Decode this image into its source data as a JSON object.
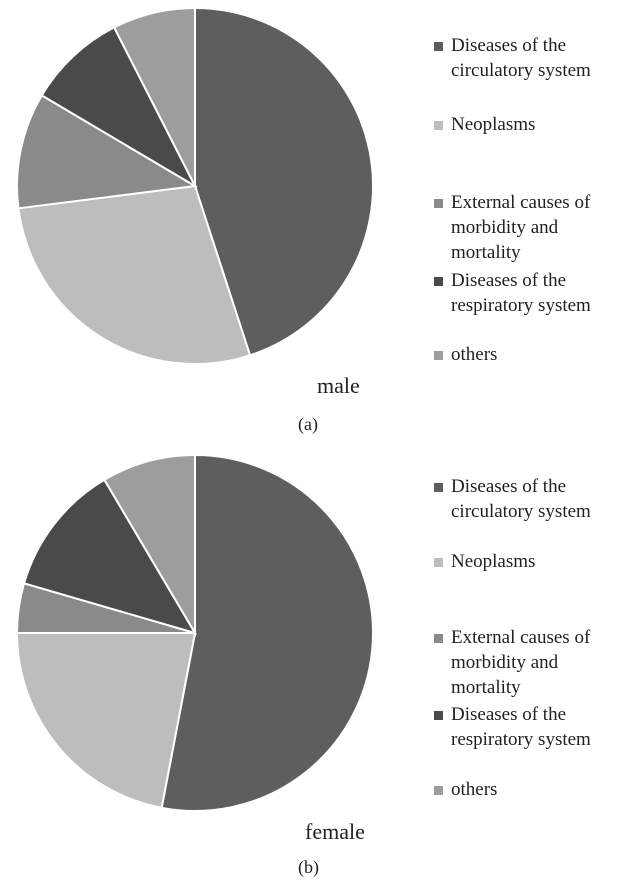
{
  "chart_data": [
    {
      "type": "pie",
      "panel_label": "(a)",
      "group_label": "male",
      "legend": [
        {
          "label": "Diseases of the circulatory system",
          "color": "#5e5e5e"
        },
        {
          "label": "Neoplasms",
          "color": "#bdbdbd"
        },
        {
          "label": "External causes of morbidity and mortality",
          "color": "#8a8a8a"
        },
        {
          "label": "Diseases of the respiratory system",
          "color": "#4a4a4a"
        },
        {
          "label": "others",
          "color": "#9d9d9d"
        }
      ],
      "slices": [
        {
          "label": "Diseases of the circulatory system",
          "value": 45,
          "color": "#5e5e5e"
        },
        {
          "label": "Neoplasms",
          "value": 28,
          "color": "#bdbdbd"
        },
        {
          "label": "External causes of morbidity and mortality",
          "value": 10.5,
          "color": "#8a8a8a"
        },
        {
          "label": "Diseases of the respiratory system",
          "value": 9,
          "color": "#4a4a4a"
        },
        {
          "label": "others",
          "value": 7.5,
          "color": "#9d9d9d"
        }
      ]
    },
    {
      "type": "pie",
      "panel_label": "(b)",
      "group_label": "female",
      "legend": [
        {
          "label": "Diseases of the circulatory system",
          "color": "#5e5e5e"
        },
        {
          "label": "Neoplasms",
          "color": "#bdbdbd"
        },
        {
          "label": "External causes of morbidity and mortality",
          "color": "#8a8a8a"
        },
        {
          "label": "Diseases of the respiratory system",
          "color": "#4a4a4a"
        },
        {
          "label": "others",
          "color": "#9d9d9d"
        }
      ],
      "slices": [
        {
          "label": "Diseases of the circulatory system",
          "value": 53,
          "color": "#5e5e5e"
        },
        {
          "label": "Neoplasms",
          "value": 22,
          "color": "#bdbdbd"
        },
        {
          "label": "External causes of morbidity and mortality",
          "value": 4.5,
          "color": "#8a8a8a"
        },
        {
          "label": "Diseases of the respiratory system",
          "value": 12,
          "color": "#4a4a4a"
        },
        {
          "label": "others",
          "value": 8.5,
          "color": "#9d9d9d"
        }
      ]
    }
  ]
}
